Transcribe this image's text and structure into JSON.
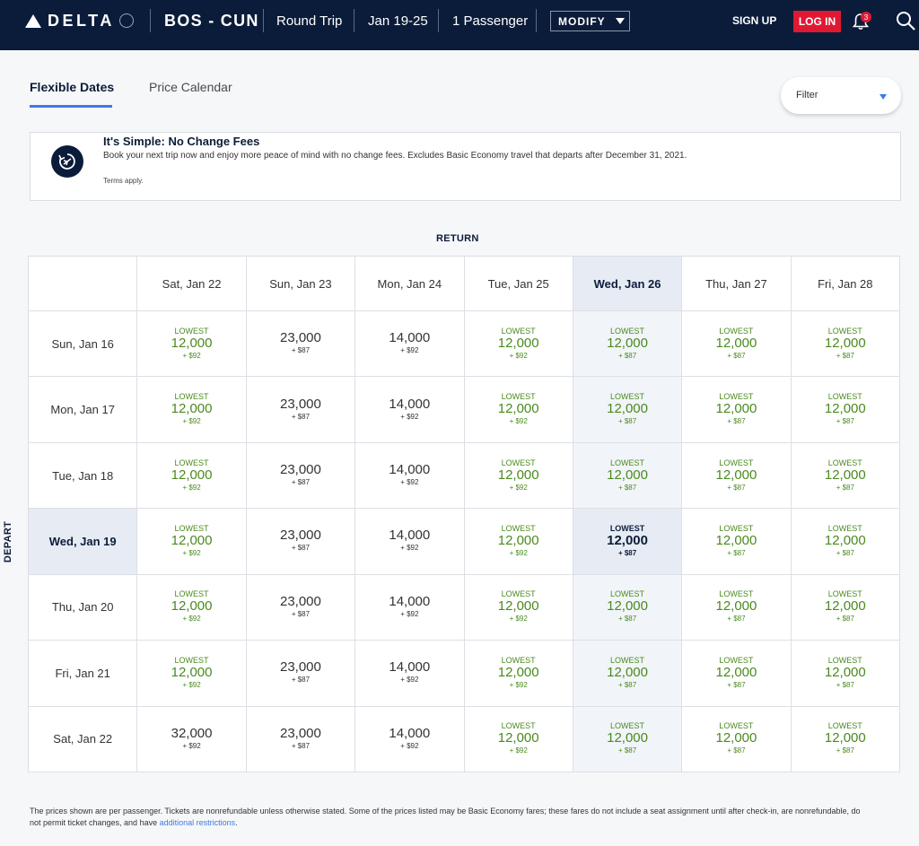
{
  "header": {
    "logo_text": "DELTA",
    "route": "BOS - CUN",
    "trip_type": "Round Trip",
    "dates": "Jan 19-25",
    "passengers": "1 Passenger",
    "modify_label": "MODIFY",
    "signup_label": "SIGN UP",
    "login_label": "LOG IN",
    "notification_count": "3",
    "brand_color": "#0b1c3a",
    "accent_red": "#e01933"
  },
  "tabs": [
    {
      "label": "Flexible Dates",
      "active": true
    },
    {
      "label": "Price Calendar",
      "active": false
    }
  ],
  "filter": {
    "label": "Filter"
  },
  "banner": {
    "title": "It's Simple: No Change Fees",
    "body": "Book your next trip now and enjoy more peace of mind with no change fees. Excludes Basic Economy travel that departs after December 31, 2021.",
    "terms": "Terms apply."
  },
  "grid": {
    "return_label": "RETURN",
    "depart_label": "DEPART",
    "return_dates": [
      "Sat, Jan 22",
      "Sun, Jan 23",
      "Mon, Jan 24",
      "Tue, Jan 25",
      "Wed, Jan 26",
      "Thu, Jan 27",
      "Fri, Jan 28"
    ],
    "highlight_return_index": 4,
    "highlight_depart_index": 3,
    "rows": [
      {
        "depart": "Sun, Jan 16",
        "cells": [
          {
            "lowest": "LOWEST",
            "miles": "12,000",
            "fee": "+ $92"
          },
          {
            "lowest": "",
            "miles": "23,000",
            "fee": "+ $87"
          },
          {
            "lowest": "",
            "miles": "14,000",
            "fee": "+ $92"
          },
          {
            "lowest": "LOWEST",
            "miles": "12,000",
            "fee": "+ $92"
          },
          {
            "lowest": "LOWEST",
            "miles": "12,000",
            "fee": "+ $87"
          },
          {
            "lowest": "LOWEST",
            "miles": "12,000",
            "fee": "+ $87"
          },
          {
            "lowest": "LOWEST",
            "miles": "12,000",
            "fee": "+ $87"
          }
        ]
      },
      {
        "depart": "Mon, Jan 17",
        "cells": [
          {
            "lowest": "LOWEST",
            "miles": "12,000",
            "fee": "+ $92"
          },
          {
            "lowest": "",
            "miles": "23,000",
            "fee": "+ $87"
          },
          {
            "lowest": "",
            "miles": "14,000",
            "fee": "+ $92"
          },
          {
            "lowest": "LOWEST",
            "miles": "12,000",
            "fee": "+ $92"
          },
          {
            "lowest": "LOWEST",
            "miles": "12,000",
            "fee": "+ $87"
          },
          {
            "lowest": "LOWEST",
            "miles": "12,000",
            "fee": "+ $87"
          },
          {
            "lowest": "LOWEST",
            "miles": "12,000",
            "fee": "+ $87"
          }
        ]
      },
      {
        "depart": "Tue, Jan 18",
        "cells": [
          {
            "lowest": "LOWEST",
            "miles": "12,000",
            "fee": "+ $92"
          },
          {
            "lowest": "",
            "miles": "23,000",
            "fee": "+ $87"
          },
          {
            "lowest": "",
            "miles": "14,000",
            "fee": "+ $92"
          },
          {
            "lowest": "LOWEST",
            "miles": "12,000",
            "fee": "+ $92"
          },
          {
            "lowest": "LOWEST",
            "miles": "12,000",
            "fee": "+ $87"
          },
          {
            "lowest": "LOWEST",
            "miles": "12,000",
            "fee": "+ $87"
          },
          {
            "lowest": "LOWEST",
            "miles": "12,000",
            "fee": "+ $87"
          }
        ]
      },
      {
        "depart": "Wed, Jan 19",
        "cells": [
          {
            "lowest": "LOWEST",
            "miles": "12,000",
            "fee": "+ $92"
          },
          {
            "lowest": "",
            "miles": "23,000",
            "fee": "+ $87"
          },
          {
            "lowest": "",
            "miles": "14,000",
            "fee": "+ $92"
          },
          {
            "lowest": "LOWEST",
            "miles": "12,000",
            "fee": "+ $92"
          },
          {
            "lowest": "LOWEST",
            "miles": "12,000",
            "fee": "+ $87"
          },
          {
            "lowest": "LOWEST",
            "miles": "12,000",
            "fee": "+ $87"
          },
          {
            "lowest": "LOWEST",
            "miles": "12,000",
            "fee": "+ $87"
          }
        ]
      },
      {
        "depart": "Thu, Jan 20",
        "cells": [
          {
            "lowest": "LOWEST",
            "miles": "12,000",
            "fee": "+ $92"
          },
          {
            "lowest": "",
            "miles": "23,000",
            "fee": "+ $87"
          },
          {
            "lowest": "",
            "miles": "14,000",
            "fee": "+ $92"
          },
          {
            "lowest": "LOWEST",
            "miles": "12,000",
            "fee": "+ $92"
          },
          {
            "lowest": "LOWEST",
            "miles": "12,000",
            "fee": "+ $87"
          },
          {
            "lowest": "LOWEST",
            "miles": "12,000",
            "fee": "+ $87"
          },
          {
            "lowest": "LOWEST",
            "miles": "12,000",
            "fee": "+ $87"
          }
        ]
      },
      {
        "depart": "Fri, Jan 21",
        "cells": [
          {
            "lowest": "LOWEST",
            "miles": "12,000",
            "fee": "+ $92"
          },
          {
            "lowest": "",
            "miles": "23,000",
            "fee": "+ $87"
          },
          {
            "lowest": "",
            "miles": "14,000",
            "fee": "+ $92"
          },
          {
            "lowest": "LOWEST",
            "miles": "12,000",
            "fee": "+ $92"
          },
          {
            "lowest": "LOWEST",
            "miles": "12,000",
            "fee": "+ $87"
          },
          {
            "lowest": "LOWEST",
            "miles": "12,000",
            "fee": "+ $87"
          },
          {
            "lowest": "LOWEST",
            "miles": "12,000",
            "fee": "+ $87"
          }
        ]
      },
      {
        "depart": "Sat, Jan 22",
        "cells": [
          {
            "lowest": "",
            "miles": "32,000",
            "fee": "+ $92"
          },
          {
            "lowest": "",
            "miles": "23,000",
            "fee": "+ $87"
          },
          {
            "lowest": "",
            "miles": "14,000",
            "fee": "+ $92"
          },
          {
            "lowest": "LOWEST",
            "miles": "12,000",
            "fee": "+ $92"
          },
          {
            "lowest": "LOWEST",
            "miles": "12,000",
            "fee": "+ $87"
          },
          {
            "lowest": "LOWEST",
            "miles": "12,000",
            "fee": "+ $87"
          },
          {
            "lowest": "LOWEST",
            "miles": "12,000",
            "fee": "+ $87"
          }
        ]
      }
    ]
  },
  "footer": {
    "note": "The prices shown are per passenger. Tickets are nonrefundable unless otherwise stated. Some of the prices listed may be Basic Economy fares; these fares do not include a seat assignment until after check-in, are nonrefundable, do not permit ticket changes, and have",
    "link": "additional restrictions",
    "period": "."
  }
}
